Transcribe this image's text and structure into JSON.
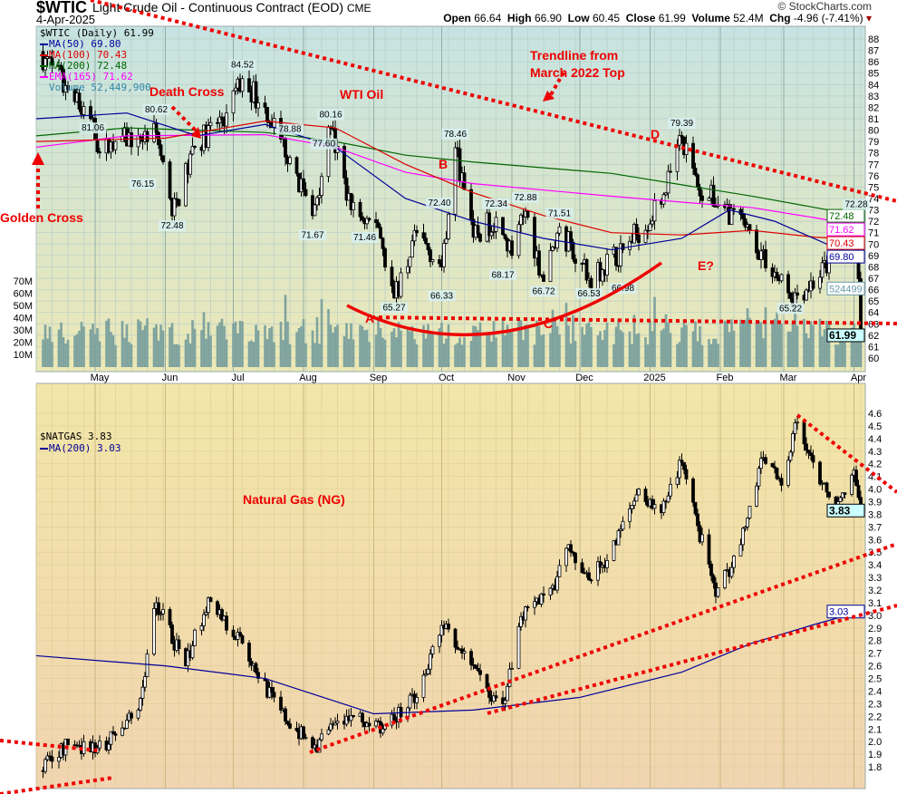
{
  "header": {
    "symbol": "$WTIC",
    "description": "Light Crude Oil - Continuous Contract (EOD)",
    "exchange": "CME",
    "date": "4-Apr-2025",
    "credit": "© StockCharts.com",
    "open_label": "Open",
    "open": "66.64",
    "high_label": "High",
    "high": "66.90",
    "low_label": "Low",
    "low": "60.45",
    "close_label": "Close",
    "close": "61.99",
    "volume_label": "Volume",
    "volume": "52.4M",
    "chg_label": "Chg",
    "chg": "-4.96 (-7.41%)"
  },
  "annotations": {
    "trendline": "Trendline from\nMarch 2022 Top",
    "wti": "WTI Oil",
    "death_cross": "Death Cross",
    "golden_cross": "Golden Cross",
    "b": "B",
    "d": "D",
    "e": "E?",
    "a": "A",
    "c": "C",
    "ng": "Natural Gas (NG)"
  },
  "colors": {
    "ma50": "#000099",
    "ma100": "#dd0000",
    "ma200": "#006600",
    "ema165": "#ff00ff",
    "volume": "#7fa39e",
    "trend": "#ee0000"
  },
  "chart_data": [
    {
      "type": "candlestick",
      "title": "$WTIC (Daily) 61.99",
      "start": "2024-04-05",
      "end": "2025-04-04",
      "legend": [
        "$WTIC (Daily) 61.99",
        "MA(50) 69.80",
        "MA(100) 70.43",
        "MA(200) 72.48",
        "EMA(165) 71.62",
        "Volume 52,449,900"
      ],
      "ylim": [
        59.5,
        89
      ],
      "yticks": [
        60,
        61,
        62,
        63,
        64,
        65,
        66,
        67,
        68,
        69,
        70,
        71,
        72,
        73,
        74,
        75,
        76,
        77,
        78,
        79,
        80,
        81,
        82,
        83,
        84,
        85,
        86,
        87,
        88
      ],
      "volume_ticks": [
        "10M",
        "20M",
        "30M",
        "40M",
        "50M",
        "60M",
        "70M"
      ],
      "months": [
        [
          "May",
          "2024-05-01"
        ],
        [
          "Jun",
          "2024-06-01"
        ],
        [
          "Jul",
          "2024-07-01"
        ],
        [
          "Aug",
          "2024-08-01"
        ],
        [
          "Sep",
          "2024-09-01"
        ],
        [
          "Oct",
          "2024-10-01"
        ],
        [
          "Nov",
          "2024-11-01"
        ],
        [
          "Dec",
          "2024-12-01"
        ],
        [
          "2025",
          "2025-01-01"
        ],
        [
          "Feb",
          "2025-02-01"
        ],
        [
          "Mar",
          "2025-03-01"
        ],
        [
          "Apr",
          "2025-04-01"
        ]
      ],
      "price_path": [
        [
          "2024-04-05",
          86.9
        ],
        [
          "2024-04-12",
          85.7
        ],
        [
          "2024-04-22",
          82.5
        ],
        [
          "2024-04-30",
          81.06
        ],
        [
          "2024-05-03",
          78
        ],
        [
          "2024-05-10",
          79
        ],
        [
          "2024-05-20",
          79.5
        ],
        [
          "2024-05-28",
          79.8
        ],
        [
          "2024-06-04",
          72.48
        ],
        [
          "2024-06-14",
          78.5
        ],
        [
          "2024-06-28",
          81.5
        ],
        [
          "2024-07-05",
          84.52
        ],
        [
          "2024-07-15",
          82
        ],
        [
          "2024-07-26",
          77.6
        ],
        [
          "2024-08-05",
          72.5
        ],
        [
          "2024-08-13",
          80.16
        ],
        [
          "2024-08-22",
          73
        ],
        [
          "2024-09-03",
          71.46
        ],
        [
          "2024-09-10",
          65.27
        ],
        [
          "2024-09-20",
          71
        ],
        [
          "2024-10-01",
          68
        ],
        [
          "2024-10-07",
          78.46
        ],
        [
          "2024-10-15",
          70.6
        ],
        [
          "2024-10-25",
          72.34
        ],
        [
          "2024-11-01",
          69
        ],
        [
          "2024-11-07",
          72.88
        ],
        [
          "2024-11-15",
          66.72
        ],
        [
          "2024-11-22",
          71.51
        ],
        [
          "2024-12-05",
          66.98
        ],
        [
          "2024-12-20",
          69.5
        ],
        [
          "2025-01-06",
          73.5
        ],
        [
          "2025-01-15",
          79.39
        ],
        [
          "2025-01-22",
          75
        ],
        [
          "2025-02-03",
          73.2
        ],
        [
          "2025-02-12",
          71.5
        ],
        [
          "2025-03-04",
          65.22
        ],
        [
          "2025-03-15",
          66.8
        ],
        [
          "2025-03-25",
          69.5
        ],
        [
          "2025-04-02",
          71.7
        ],
        [
          "2025-04-03",
          66.95
        ],
        [
          "2025-04-04",
          61.99
        ]
      ],
      "ma50": [
        [
          "2024-04-05",
          81
        ],
        [
          "2024-05-15",
          81.5
        ],
        [
          "2024-06-15",
          79.5
        ],
        [
          "2024-07-15",
          80.5
        ],
        [
          "2024-08-15",
          78.5
        ],
        [
          "2024-09-15",
          74
        ],
        [
          "2024-10-15",
          72
        ],
        [
          "2024-11-15",
          70.5
        ],
        [
          "2024-12-15",
          69.5
        ],
        [
          "2025-01-15",
          70.5
        ],
        [
          "2025-02-05",
          73
        ],
        [
          "2025-02-25",
          72
        ],
        [
          "2025-03-20",
          70
        ],
        [
          "2025-04-04",
          69.8
        ]
      ],
      "ma100": [
        [
          "2024-04-05",
          79
        ],
        [
          "2024-06-01",
          79.3
        ],
        [
          "2024-07-15",
          80.8
        ],
        [
          "2024-08-15",
          80.2
        ],
        [
          "2024-09-15",
          77
        ],
        [
          "2024-10-15",
          74.5
        ],
        [
          "2024-11-15",
          72.5
        ],
        [
          "2024-12-15",
          71
        ],
        [
          "2025-01-15",
          70.8
        ],
        [
          "2025-02-15",
          71.2
        ],
        [
          "2025-03-15",
          70.6
        ],
        [
          "2025-04-04",
          70.43
        ]
      ],
      "ma200": [
        [
          "2024-04-05",
          79.5
        ],
        [
          "2024-05-15",
          80.2
        ],
        [
          "2024-07-15",
          79.8
        ],
        [
          "2024-08-15",
          79
        ],
        [
          "2024-09-15",
          77.8
        ],
        [
          "2024-10-15",
          77.2
        ],
        [
          "2024-12-15",
          76.2
        ],
        [
          "2025-01-15",
          75.2
        ],
        [
          "2025-02-15",
          74.2
        ],
        [
          "2025-03-15",
          73.2
        ],
        [
          "2025-04-04",
          72.48
        ]
      ],
      "ema165": [
        [
          "2024-04-05",
          78.5
        ],
        [
          "2024-05-15",
          79.5
        ],
        [
          "2024-07-15",
          79.6
        ],
        [
          "2024-08-15",
          78.5
        ],
        [
          "2024-09-15",
          76.3
        ],
        [
          "2024-10-15",
          75.3
        ],
        [
          "2024-12-15",
          74.2
        ],
        [
          "2025-01-20",
          73.6
        ],
        [
          "2025-02-15",
          73.2
        ],
        [
          "2025-03-15",
          72.3
        ],
        [
          "2025-04-04",
          71.62
        ]
      ],
      "labels": [
        [
          "2024-04-30",
          81.06,
          "81.06",
          "below"
        ],
        [
          "2024-05-28",
          80.62,
          "80.62",
          "above"
        ],
        [
          "2024-05-22",
          76.15,
          "76.15",
          "below"
        ],
        [
          "2024-06-04",
          72.48,
          "72.48",
          "below"
        ],
        [
          "2024-07-05",
          84.52,
          "84.52",
          "above"
        ],
        [
          "2024-07-26",
          78.88,
          "78.88",
          "above"
        ],
        [
          "2024-08-13",
          80.16,
          "80.16",
          "above"
        ],
        [
          "2024-08-10",
          77.6,
          "77.60",
          "above"
        ],
        [
          "2024-08-05",
          71.67,
          "71.67",
          "below"
        ],
        [
          "2024-08-28",
          71.46,
          "71.46",
          "below"
        ],
        [
          "2024-09-10",
          65.27,
          "65.27",
          "below"
        ],
        [
          "2024-09-30",
          72.4,
          "72.40",
          "above"
        ],
        [
          "2024-10-07",
          78.46,
          "78.46",
          "above"
        ],
        [
          "2024-10-01",
          66.33,
          "66.33",
          "below"
        ],
        [
          "2024-10-25",
          72.34,
          "72.34",
          "above"
        ],
        [
          "2024-10-28",
          68.17,
          "68.17",
          "below"
        ],
        [
          "2024-11-07",
          72.88,
          "72.88",
          "above"
        ],
        [
          "2024-11-15",
          66.72,
          "66.72",
          "below"
        ],
        [
          "2024-11-22",
          71.51,
          "71.51",
          "above"
        ],
        [
          "2024-12-05",
          66.53,
          "66.53",
          "below"
        ],
        [
          "2024-12-20",
          66.98,
          "66.98",
          "below"
        ],
        [
          "2025-01-15",
          79.39,
          "79.39",
          "above"
        ],
        [
          "2025-03-04",
          65.22,
          "65.22",
          "below"
        ],
        [
          "2025-04-02",
          72.28,
          "72.28",
          "above"
        ]
      ],
      "value_tags": [
        [
          "72.48",
          72.48,
          "#006600"
        ],
        [
          "71.62",
          71.62,
          "#ff00ff"
        ],
        [
          "70.43",
          70.43,
          "#dd0000"
        ],
        [
          "69.80",
          69.8,
          "#000099"
        ],
        [
          "524499",
          66.1,
          "#6699aa"
        ],
        [
          "61.99",
          61.99,
          "#000"
        ]
      ]
    },
    {
      "type": "candlestick",
      "title": "$NATGAS 3.83",
      "legend": [
        "$NATGAS 3.83",
        "MA(200) 3.03"
      ],
      "ylim": [
        1.7,
        4.7
      ],
      "yticks": [
        1.8,
        1.9,
        2.0,
        2.1,
        2.2,
        2.3,
        2.4,
        2.5,
        2.6,
        2.7,
        2.8,
        2.9,
        3.0,
        3.1,
        3.2,
        3.3,
        3.4,
        3.5,
        3.6,
        3.7,
        3.8,
        3.9,
        4.0,
        4.1,
        4.2,
        4.3,
        4.4,
        4.5,
        4.6
      ],
      "price_path": [
        [
          "2024-04-05",
          1.77
        ],
        [
          "2024-04-20",
          1.99
        ],
        [
          "2024-05-02",
          1.95
        ],
        [
          "2024-05-10",
          2.05
        ],
        [
          "2024-05-20",
          2.25
        ],
        [
          "2024-05-28",
          3.1
        ],
        [
          "2024-06-10",
          2.6
        ],
        [
          "2024-06-20",
          3.14
        ],
        [
          "2024-07-05",
          2.78
        ],
        [
          "2024-07-20",
          2.27
        ],
        [
          "2024-08-05",
          1.95
        ],
        [
          "2024-08-20",
          2.2
        ],
        [
          "2024-09-05",
          2.1
        ],
        [
          "2024-09-20",
          2.35
        ],
        [
          "2024-10-01",
          2.92
        ],
        [
          "2024-10-10",
          2.7
        ],
        [
          "2024-10-22",
          2.35
        ],
        [
          "2024-10-28",
          2.3
        ],
        [
          "2024-11-05",
          2.99
        ],
        [
          "2024-11-20",
          3.2
        ],
        [
          "2024-11-25",
          3.53
        ],
        [
          "2024-12-05",
          3.28
        ],
        [
          "2024-12-15",
          3.5
        ],
        [
          "2024-12-27",
          4.0
        ],
        [
          "2025-01-05",
          3.78
        ],
        [
          "2025-01-15",
          4.21
        ],
        [
          "2025-01-22",
          3.71
        ],
        [
          "2025-01-30",
          3.15
        ],
        [
          "2025-02-10",
          3.56
        ],
        [
          "2025-02-20",
          4.25
        ],
        [
          "2025-02-28",
          4.03
        ],
        [
          "2025-03-07",
          4.53
        ],
        [
          "2025-03-15",
          4.15
        ],
        [
          "2025-03-25",
          3.9
        ],
        [
          "2025-04-01",
          4.15
        ],
        [
          "2025-04-04",
          3.83
        ]
      ],
      "ma200": [
        [
          "2024-04-05",
          2.68
        ],
        [
          "2024-06-01",
          2.6
        ],
        [
          "2024-07-15",
          2.5
        ],
        [
          "2024-09-01",
          2.22
        ],
        [
          "2024-10-15",
          2.25
        ],
        [
          "2024-12-01",
          2.35
        ],
        [
          "2025-01-15",
          2.55
        ],
        [
          "2025-02-15",
          2.78
        ],
        [
          "2025-03-15",
          2.93
        ],
        [
          "2025-04-04",
          3.03
        ]
      ],
      "value_tags": [
        [
          "3.83",
          3.83,
          "#000"
        ],
        [
          "3.03",
          3.03,
          "#000099"
        ]
      ]
    }
  ]
}
